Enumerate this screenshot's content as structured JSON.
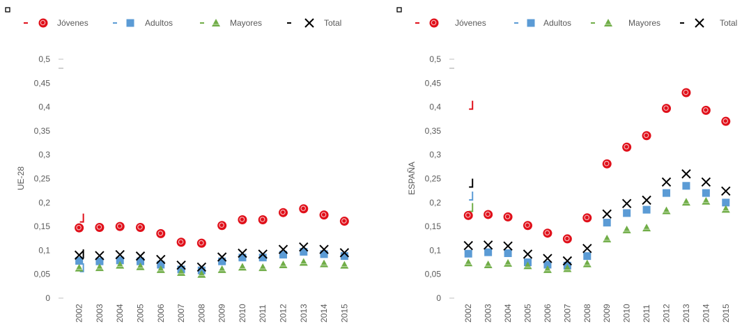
{
  "colors": {
    "jovenes": "#e0101a",
    "adultos": "#5b9bd5",
    "mayores": "#70ad47",
    "total": "#000000",
    "axis_text": "#595959"
  },
  "chart_data": [
    {
      "type": "scatter",
      "title": "",
      "xlabel": "",
      "ylabel": "UE-28",
      "ylim": [
        0,
        0.5
      ],
      "yticks": [
        "0",
        "0,05",
        "0,1",
        "0,15",
        "0,2",
        "0,25",
        "0,3",
        "0,35",
        "0,4",
        "0,45",
        "0,5"
      ],
      "x": [
        "2002",
        "2003",
        "2004",
        "2005",
        "2006",
        "2007",
        "2008",
        "2009",
        "2010",
        "2011",
        "2012",
        "2013",
        "2014",
        "2015"
      ],
      "legend_position": "top",
      "grid": false,
      "series": [
        {
          "name": "Jóvenes",
          "marker": "circle",
          "values": [
            0.147,
            0.148,
            0.15,
            0.148,
            0.135,
            0.117,
            0.115,
            0.152,
            0.164,
            0.164,
            0.179,
            0.187,
            0.174,
            0.161
          ]
        },
        {
          "name": "Adultos",
          "marker": "square",
          "values": [
            0.078,
            0.077,
            0.079,
            0.077,
            0.07,
            0.06,
            0.058,
            0.077,
            0.085,
            0.085,
            0.091,
            0.097,
            0.092,
            0.088
          ]
        },
        {
          "name": "Mayores",
          "marker": "triangle",
          "values": [
            0.063,
            0.064,
            0.069,
            0.066,
            0.06,
            0.054,
            0.05,
            0.06,
            0.065,
            0.064,
            0.07,
            0.075,
            0.072,
            0.069
          ]
        },
        {
          "name": "Total",
          "marker": "x",
          "values": [
            0.09,
            0.089,
            0.091,
            0.088,
            0.081,
            0.069,
            0.065,
            0.086,
            0.094,
            0.092,
            0.102,
            0.107,
            0.102,
            0.095
          ]
        }
      ]
    },
    {
      "type": "scatter",
      "title": "",
      "xlabel": "",
      "ylabel": "ESPAÑA",
      "ylim": [
        0,
        0.5
      ],
      "yticks": [
        "0",
        "0,05",
        "0,1",
        "0,15",
        "0,2",
        "0,25",
        "0,3",
        "0,35",
        "0,4",
        "0,45",
        "0,5"
      ],
      "x": [
        "2002",
        "2003",
        "2004",
        "2005",
        "2006",
        "2007",
        "2008",
        "2009",
        "2010",
        "2011",
        "2012",
        "2013",
        "2014",
        "2015"
      ],
      "legend_position": "top",
      "grid": false,
      "series": [
        {
          "name": "Jóvenes",
          "marker": "circle",
          "values": [
            0.173,
            0.175,
            0.17,
            0.152,
            0.136,
            0.124,
            0.168,
            0.281,
            0.316,
            0.34,
            0.397,
            0.43,
            0.393,
            0.37
          ]
        },
        {
          "name": "Adultos",
          "marker": "square",
          "values": [
            0.093,
            0.096,
            0.094,
            0.075,
            0.07,
            0.068,
            0.088,
            0.158,
            0.178,
            0.185,
            0.22,
            0.235,
            0.22,
            0.2
          ]
        },
        {
          "name": "Mayores",
          "marker": "triangle",
          "values": [
            0.074,
            0.07,
            0.073,
            0.068,
            0.06,
            0.062,
            0.072,
            0.124,
            0.143,
            0.147,
            0.183,
            0.201,
            0.203,
            0.186
          ]
        },
        {
          "name": "Total",
          "marker": "x",
          "values": [
            0.11,
            0.111,
            0.109,
            0.092,
            0.083,
            0.078,
            0.104,
            0.176,
            0.198,
            0.205,
            0.243,
            0.26,
            0.243,
            0.224
          ]
        }
      ]
    }
  ]
}
